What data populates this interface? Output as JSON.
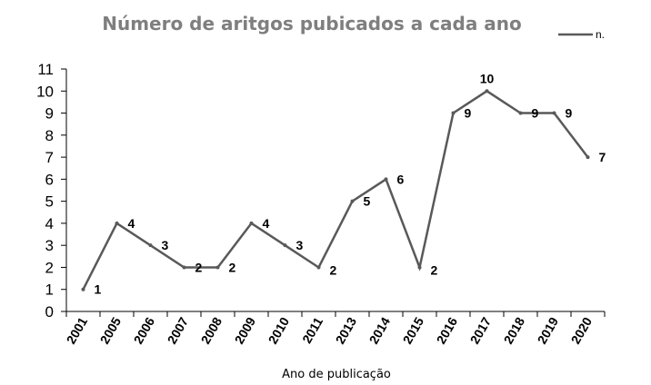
{
  "chart_data": {
    "type": "line",
    "title": "Número de aritgos pubicados a cada ano",
    "xlabel": "Ano de publicação",
    "ylabel": "",
    "categories": [
      "2001",
      "2005",
      "2006",
      "2007",
      "2008",
      "2009",
      "2010",
      "2011",
      "2013",
      "2014",
      "2015",
      "2016",
      "2017",
      "2018",
      "2019",
      "2020"
    ],
    "series": [
      {
        "name": "n.",
        "values": [
          1,
          4,
          3,
          2,
          2,
          4,
          3,
          2,
          5,
          6,
          2,
          9,
          10,
          9,
          9,
          7
        ],
        "color": "#595959"
      }
    ],
    "ylim": [
      0,
      11
    ],
    "yticks": [
      0,
      1,
      2,
      3,
      4,
      5,
      6,
      7,
      8,
      9,
      10,
      11
    ],
    "grid": false,
    "legend_position": "top-right"
  }
}
